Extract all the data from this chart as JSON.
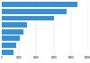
{
  "values": [
    8800,
    7500,
    6000,
    2900,
    2500,
    2100,
    1700,
    1400
  ],
  "bar_color": "#3a8fd1",
  "background_color": "#ffffff",
  "grid_color": "#d9d9d9",
  "xlim": [
    0,
    10000
  ],
  "bar_height": 0.78,
  "xticks": [
    0,
    2000,
    4000,
    6000,
    8000,
    10000
  ]
}
